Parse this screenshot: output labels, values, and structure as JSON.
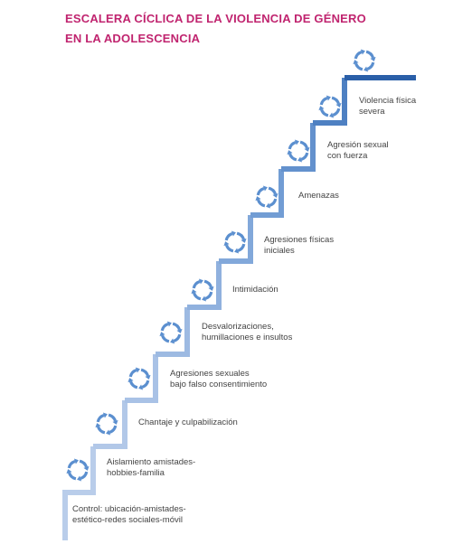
{
  "title": {
    "line1": "ESCALERA CÍCLICA DE LA VIOLENCIA DE GÉNERO",
    "line2": "EN LA ADOLESCENCIA"
  },
  "colors": {
    "title": "#c0246f",
    "steps": [
      "#b9cdea",
      "#b2c8e8",
      "#a9c2e6",
      "#9dbae2",
      "#90b1de",
      "#82a8da",
      "#729dd4",
      "#6391cd",
      "#4e80c2",
      "#3b6fb6",
      "#2a5fa8"
    ],
    "icon": "#5b8fcf",
    "text": "#444444"
  },
  "steps": [
    {
      "label_lines": [
        "Control: ubicación-amistades-",
        "estético-redes sociales-móvil"
      ]
    },
    {
      "label_lines": [
        "Aislamiento amistades-",
        "hobbies-familia"
      ]
    },
    {
      "label_lines": [
        "Chantaje y culpabilización"
      ]
    },
    {
      "label_lines": [
        "Agresiones sexuales",
        "bajo falso consentimiento"
      ]
    },
    {
      "label_lines": [
        "Desvalorizaciones,",
        "humillaciones e insultos"
      ]
    },
    {
      "label_lines": [
        "Intimidación"
      ]
    },
    {
      "label_lines": [
        "Agresiones físicas",
        "iniciales"
      ]
    },
    {
      "label_lines": [
        "Amenazas"
      ]
    },
    {
      "label_lines": [
        "Agresión sexual",
        "con fuerza"
      ]
    },
    {
      "label_lines": [
        "Violencia física",
        "severa"
      ]
    },
    {
      "label_lines": []
    }
  ],
  "icon_name": "cycle-arrows-icon"
}
